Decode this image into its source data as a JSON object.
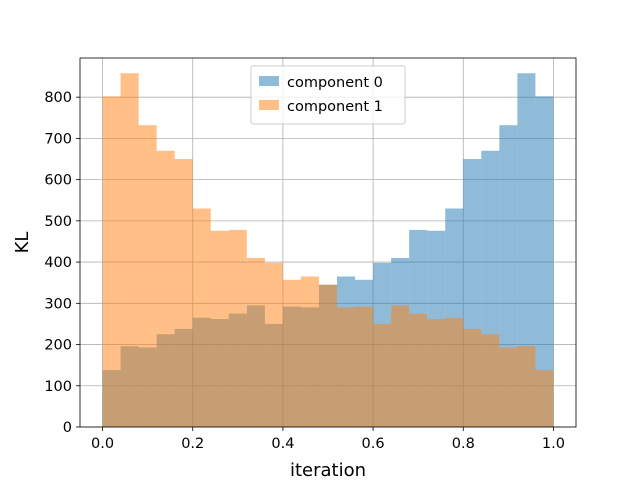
{
  "chart_data": {
    "type": "bar",
    "subtype": "overlaid-histogram",
    "title": "",
    "xlabel": "iteration",
    "ylabel": "KL",
    "xlim": [
      -0.05,
      1.05
    ],
    "ylim": [
      0,
      895
    ],
    "xticks": [
      0.0,
      0.2,
      0.4,
      0.6,
      0.8,
      1.0
    ],
    "xtick_labels": [
      "0.0",
      "0.2",
      "0.4",
      "0.6",
      "0.8",
      "1.0"
    ],
    "yticks": [
      0,
      100,
      200,
      300,
      400,
      500,
      600,
      700,
      800
    ],
    "ytick_labels": [
      "0",
      "100",
      "200",
      "300",
      "400",
      "500",
      "600",
      "700",
      "800"
    ],
    "grid": true,
    "legend_position": "upper-center",
    "bin_edges": [
      0.0,
      0.04,
      0.08,
      0.12,
      0.16,
      0.2,
      0.24,
      0.28,
      0.32,
      0.36,
      0.4,
      0.44,
      0.48,
      0.52,
      0.56,
      0.6,
      0.64,
      0.68,
      0.72,
      0.76,
      0.8,
      0.84,
      0.88,
      0.92,
      0.96,
      1.0
    ],
    "series": [
      {
        "name": "component 0",
        "color": "#1f77b4",
        "alpha": 0.5,
        "values": [
          138,
          196,
          193,
          225,
          238,
          265,
          262,
          275,
          295,
          250,
          292,
          290,
          345,
          365,
          357,
          398,
          410,
          478,
          476,
          530,
          650,
          670,
          732,
          858,
          802
        ]
      },
      {
        "name": "component 1",
        "color": "#ff7f0e",
        "alpha": 0.5,
        "values": [
          802,
          858,
          732,
          670,
          650,
          530,
          476,
          478,
          410,
          398,
          357,
          365,
          345,
          290,
          292,
          250,
          295,
          275,
          262,
          265,
          238,
          225,
          193,
          196,
          138
        ]
      }
    ]
  }
}
